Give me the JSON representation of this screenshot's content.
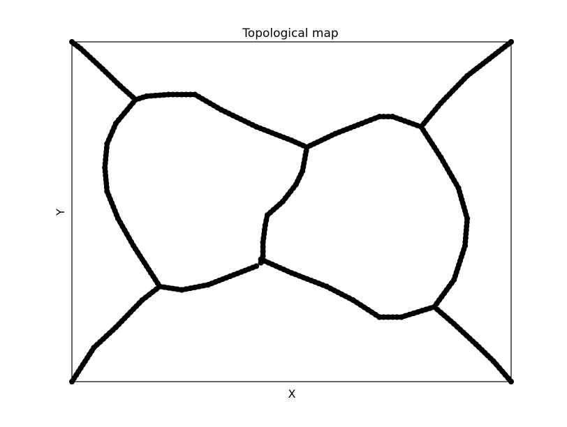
{
  "chart_data": {
    "type": "scatter",
    "title": "Topological map",
    "xlabel": "X",
    "ylabel": "Y",
    "xlim": [
      0,
      1
    ],
    "ylim": [
      0,
      1
    ],
    "grid": false,
    "x_ticks_visible": false,
    "y_ticks_visible": false,
    "marker_color": "#000000",
    "paths": [
      {
        "name": "",
        "points": [
          [
            0.0,
            1.0
          ],
          [
            0.02,
            0.98
          ],
          [
            0.07,
            0.92
          ],
          [
            0.11,
            0.87
          ],
          [
            0.145,
            0.83
          ]
        ]
      },
      {
        "name": "",
        "points": [
          [
            0.145,
            0.83
          ],
          [
            0.17,
            0.84
          ],
          [
            0.22,
            0.845
          ],
          [
            0.28,
            0.845
          ]
        ]
      },
      {
        "name": "",
        "points": [
          [
            0.28,
            0.845
          ],
          [
            0.34,
            0.8
          ],
          [
            0.42,
            0.75
          ],
          [
            0.5,
            0.71
          ],
          [
            0.535,
            0.69
          ]
        ]
      },
      {
        "name": "",
        "points": [
          [
            0.145,
            0.83
          ],
          [
            0.1,
            0.76
          ],
          [
            0.08,
            0.7
          ],
          [
            0.075,
            0.63
          ],
          [
            0.08,
            0.56
          ],
          [
            0.105,
            0.48
          ],
          [
            0.14,
            0.4
          ],
          [
            0.18,
            0.32
          ],
          [
            0.2,
            0.28
          ]
        ]
      },
      {
        "name": "",
        "points": [
          [
            0.2,
            0.28
          ],
          [
            0.25,
            0.27
          ],
          [
            0.31,
            0.285
          ],
          [
            0.36,
            0.31
          ],
          [
            0.42,
            0.34
          ]
        ]
      },
      {
        "name": "",
        "points": [
          [
            0.2,
            0.28
          ],
          [
            0.16,
            0.24
          ],
          [
            0.1,
            0.16
          ],
          [
            0.05,
            0.1
          ],
          [
            0.0,
            0.0
          ]
        ]
      },
      {
        "name": "",
        "points": [
          [
            0.535,
            0.69
          ],
          [
            0.525,
            0.62
          ],
          [
            0.51,
            0.58
          ],
          [
            0.48,
            0.53
          ],
          [
            0.445,
            0.49
          ],
          [
            0.44,
            0.46
          ],
          [
            0.435,
            0.41
          ],
          [
            0.435,
            0.37
          ],
          [
            0.43,
            0.35
          ]
        ]
      },
      {
        "name": "",
        "points": [
          [
            0.535,
            0.69
          ],
          [
            0.6,
            0.73
          ],
          [
            0.66,
            0.76
          ],
          [
            0.7,
            0.78
          ],
          [
            0.73,
            0.78
          ],
          [
            0.795,
            0.75
          ]
        ]
      },
      {
        "name": "",
        "points": [
          [
            0.795,
            0.75
          ],
          [
            0.84,
            0.82
          ],
          [
            0.9,
            0.9
          ],
          [
            0.95,
            0.95
          ],
          [
            1.0,
            1.0
          ]
        ]
      },
      {
        "name": "",
        "points": [
          [
            0.795,
            0.75
          ],
          [
            0.84,
            0.66
          ],
          [
            0.88,
            0.57
          ],
          [
            0.9,
            0.48
          ],
          [
            0.895,
            0.4
          ],
          [
            0.87,
            0.3
          ],
          [
            0.825,
            0.22
          ]
        ]
      },
      {
        "name": "",
        "points": [
          [
            0.43,
            0.36
          ],
          [
            0.5,
            0.32
          ],
          [
            0.58,
            0.28
          ],
          [
            0.64,
            0.24
          ],
          [
            0.7,
            0.19
          ],
          [
            0.75,
            0.19
          ],
          [
            0.825,
            0.22
          ]
        ]
      },
      {
        "name": "",
        "points": [
          [
            0.825,
            0.22
          ],
          [
            0.87,
            0.17
          ],
          [
            0.92,
            0.11
          ],
          [
            0.96,
            0.06
          ],
          [
            1.0,
            0.0
          ]
        ]
      }
    ]
  }
}
